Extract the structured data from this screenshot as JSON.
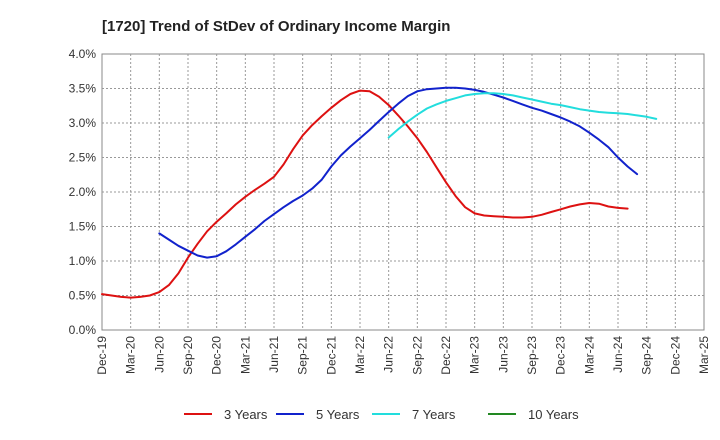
{
  "chart_data": {
    "type": "line",
    "title": "[1720]  Trend of StDev of Ordinary Income Margin",
    "xlabel": "",
    "ylabel": "",
    "ylim": [
      0,
      4.0
    ],
    "y_ticks": [
      "0.0%",
      "0.5%",
      "1.0%",
      "1.5%",
      "2.0%",
      "2.5%",
      "3.0%",
      "3.5%",
      "4.0%"
    ],
    "y_tick_values": [
      0,
      0.5,
      1.0,
      1.5,
      2.0,
      2.5,
      3.0,
      3.5,
      4.0
    ],
    "x_ticks": [
      "Dec-19",
      "Mar-20",
      "Jun-20",
      "Sep-20",
      "Dec-20",
      "Mar-21",
      "Jun-21",
      "Sep-21",
      "Dec-21",
      "Mar-22",
      "Jun-22",
      "Sep-22",
      "Dec-22",
      "Mar-23",
      "Jun-23",
      "Sep-23",
      "Dec-23",
      "Mar-24",
      "Jun-24",
      "Sep-24",
      "Dec-24",
      "Mar-25"
    ],
    "grid": true,
    "legend_position": "bottom",
    "series": [
      {
        "name": "3 Years",
        "color": "#dd1111",
        "start_month": 0,
        "values": [
          0.52,
          0.5,
          0.48,
          0.47,
          0.48,
          0.5,
          0.55,
          0.65,
          0.82,
          1.05,
          1.25,
          1.43,
          1.57,
          1.69,
          1.82,
          1.93,
          2.03,
          2.12,
          2.22,
          2.4,
          2.62,
          2.82,
          2.97,
          3.1,
          3.22,
          3.33,
          3.42,
          3.47,
          3.46,
          3.38,
          3.26,
          3.11,
          2.95,
          2.78,
          2.58,
          2.36,
          2.14,
          1.94,
          1.78,
          1.69,
          1.66,
          1.65,
          1.64,
          1.63,
          1.63,
          1.64,
          1.67,
          1.71,
          1.75,
          1.79,
          1.82,
          1.84,
          1.83,
          1.79,
          1.77,
          1.76
        ]
      },
      {
        "name": "5 Years",
        "color": "#1122cc",
        "start_month": 6,
        "values": [
          1.4,
          1.31,
          1.22,
          1.15,
          1.08,
          1.05,
          1.07,
          1.14,
          1.24,
          1.35,
          1.46,
          1.58,
          1.68,
          1.78,
          1.87,
          1.95,
          2.05,
          2.18,
          2.37,
          2.53,
          2.66,
          2.78,
          2.9,
          3.03,
          3.16,
          3.28,
          3.39,
          3.46,
          3.49,
          3.5,
          3.51,
          3.51,
          3.5,
          3.48,
          3.45,
          3.41,
          3.37,
          3.32,
          3.27,
          3.22,
          3.18,
          3.13,
          3.08,
          3.02,
          2.95,
          2.86,
          2.76,
          2.65,
          2.5,
          2.37,
          2.26
        ]
      },
      {
        "name": "7 Years",
        "color": "#22dddd",
        "start_month": 30,
        "values": [
          2.79,
          2.91,
          3.02,
          3.12,
          3.21,
          3.27,
          3.32,
          3.36,
          3.4,
          3.42,
          3.43,
          3.43,
          3.42,
          3.4,
          3.37,
          3.34,
          3.31,
          3.28,
          3.26,
          3.23,
          3.2,
          3.18,
          3.16,
          3.15,
          3.14,
          3.13,
          3.11,
          3.09,
          3.06
        ]
      },
      {
        "name": "10 Years",
        "color": "#228822",
        "start_month": 0,
        "values": []
      }
    ]
  }
}
